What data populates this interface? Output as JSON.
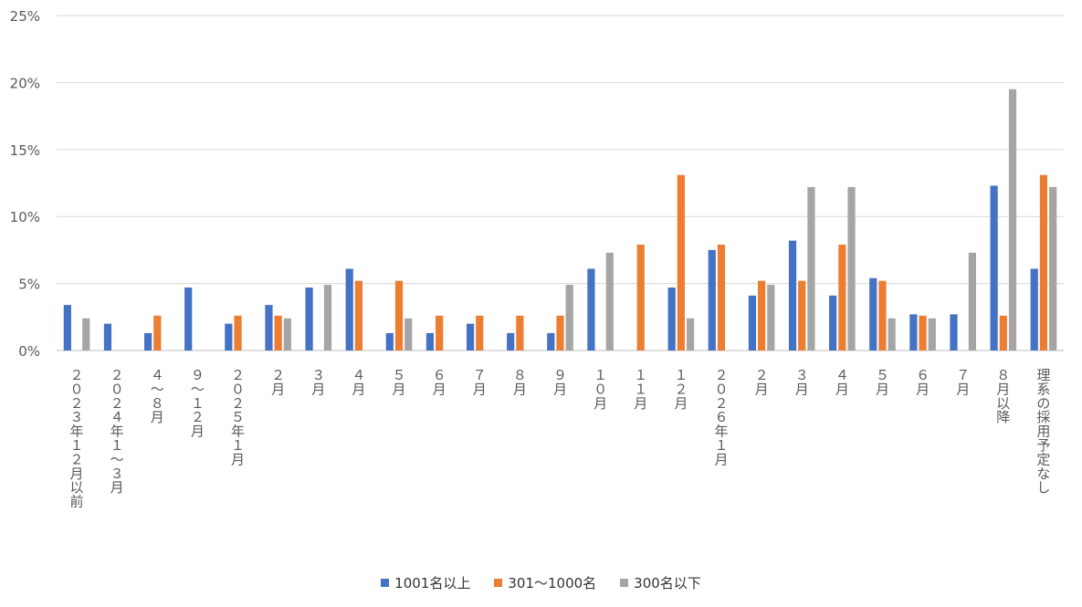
{
  "chart_data": {
    "type": "bar",
    "title": "",
    "xlabel": "",
    "ylabel": "",
    "ylim": [
      0,
      25
    ],
    "yticks": [
      "0%",
      "5%",
      "10%",
      "15%",
      "20%",
      "25%"
    ],
    "grid": "horizontal",
    "legend": "bottom",
    "categories": [
      "２０２３年１２月以前",
      "２０２４年１～３月",
      "４～８月",
      "９～１２月",
      "２０２５年１月",
      "２月",
      "３月",
      "４月",
      "５月",
      "６月",
      "７月",
      "８月",
      "９月",
      "１０月",
      "１１月",
      "１２月",
      "２０２６年１月",
      "２月",
      "３月",
      "４月",
      "５月",
      "６月",
      "７月",
      "８月以降",
      "理系の採用予定なし"
    ],
    "series": [
      {
        "name": "1001名以上",
        "color": "#4472C4",
        "values": [
          3.4,
          2.0,
          1.3,
          4.7,
          2.0,
          3.4,
          4.7,
          6.1,
          1.3,
          1.3,
          2.0,
          1.3,
          1.3,
          6.1,
          0,
          4.7,
          7.5,
          4.1,
          8.2,
          4.1,
          5.4,
          2.7,
          2.7,
          12.3,
          6.1
        ]
      },
      {
        "name": "301～1000名",
        "color": "#ED7D31",
        "values": [
          0,
          0,
          2.6,
          0,
          2.6,
          2.6,
          0,
          5.2,
          5.2,
          2.6,
          2.6,
          2.6,
          2.6,
          0,
          7.9,
          13.1,
          7.9,
          5.2,
          5.2,
          7.9,
          5.2,
          2.6,
          0,
          2.6,
          13.1
        ]
      },
      {
        "name": "300名以下",
        "color": "#A5A5A5",
        "values": [
          2.4,
          0,
          0,
          0,
          0,
          2.4,
          4.9,
          0,
          2.4,
          0,
          0,
          0,
          4.9,
          7.3,
          0,
          2.4,
          0,
          4.9,
          12.2,
          12.2,
          2.4,
          2.4,
          7.3,
          19.5,
          12.2
        ]
      }
    ]
  }
}
